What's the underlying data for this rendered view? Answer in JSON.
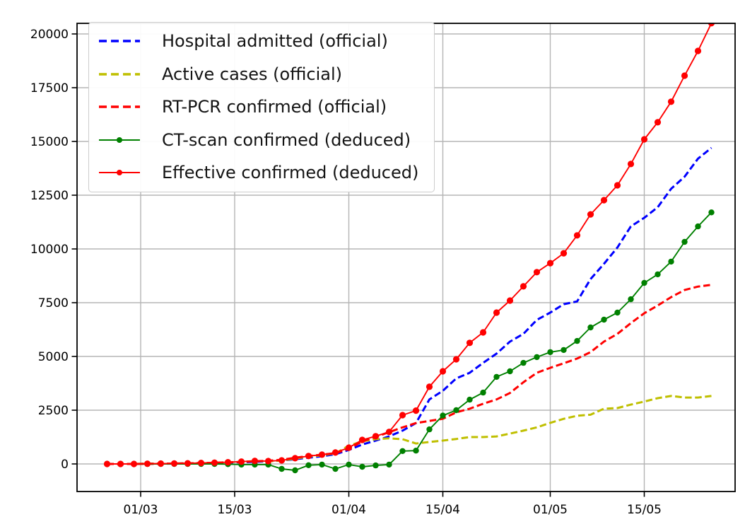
{
  "chart_data": {
    "type": "line",
    "title": "",
    "xlabel": "",
    "ylabel": "",
    "grid": true,
    "legend_position": "upper-left",
    "x_dates": [
      "25/02",
      "27/02",
      "29/02",
      "02/03",
      "04/03",
      "06/03",
      "08/03",
      "10/03",
      "12/03",
      "14/03",
      "16/03",
      "18/03",
      "20/03",
      "22/03",
      "24/03",
      "26/03",
      "28/03",
      "30/03",
      "01/04",
      "03/04",
      "05/04",
      "07/04",
      "09/04",
      "11/04",
      "13/04",
      "15/04",
      "17/04",
      "19/04",
      "21/04",
      "23/04",
      "25/04",
      "27/04",
      "29/04",
      "01/05",
      "03/05",
      "05/05",
      "07/05",
      "09/05",
      "11/05",
      "13/05",
      "15/05",
      "17/05",
      "19/05",
      "21/05",
      "23/05",
      "25/05"
    ],
    "x_day_offsets": [
      -5,
      -3,
      -1,
      1,
      3,
      5,
      7,
      9,
      11,
      13,
      15,
      17,
      19,
      21,
      23,
      25,
      27,
      29,
      31,
      33,
      35,
      37,
      39,
      41,
      43,
      45,
      47,
      49,
      51,
      53,
      55,
      57,
      59,
      61,
      63,
      65,
      67,
      69,
      71,
      73,
      75,
      77,
      79,
      81,
      83,
      85
    ],
    "x_ticks": [
      {
        "label": "01/03",
        "day": 0
      },
      {
        "label": "15/03",
        "day": 14
      },
      {
        "label": "01/04",
        "day": 31
      },
      {
        "label": "15/04",
        "day": 45
      },
      {
        "label": "01/05",
        "day": 61
      },
      {
        "label": "15/05",
        "day": 75
      }
    ],
    "y_ticks": [
      0,
      2500,
      5000,
      7500,
      10000,
      12500,
      15000,
      17500,
      20000
    ],
    "ylim": [
      -1283,
      20490
    ],
    "xlim_days": [
      -9.5,
      88.5
    ],
    "grid_color": "#b5b5b5",
    "series": [
      {
        "name": "Hospital admitted (official)",
        "color": "#0000ff",
        "style": "dashed",
        "marker": false,
        "values": [
          0,
          0,
          0,
          5,
          10,
          15,
          25,
          35,
          50,
          65,
          80,
          100,
          120,
          160,
          220,
          290,
          360,
          450,
          650,
          900,
          1085,
          1280,
          1550,
          1900,
          3000,
          3400,
          3980,
          4240,
          4700,
          5130,
          5690,
          6050,
          6700,
          7040,
          7430,
          7560,
          8600,
          9310,
          10070,
          11050,
          11450,
          11940,
          12800,
          13360,
          14200,
          14700
        ]
      },
      {
        "name": "Active cases (official)",
        "color": "#bfbf00",
        "style": "dashed",
        "marker": false,
        "values": [
          0,
          0,
          0,
          10,
          12,
          18,
          28,
          40,
          55,
          75,
          100,
          130,
          125,
          155,
          250,
          340,
          400,
          490,
          850,
          1050,
          1150,
          1190,
          1150,
          950,
          1020,
          1085,
          1160,
          1250,
          1250,
          1280,
          1410,
          1550,
          1700,
          1910,
          2100,
          2240,
          2290,
          2570,
          2600,
          2760,
          2900,
          3060,
          3160,
          3090,
          3090,
          3160
        ]
      },
      {
        "name": "RT-PCR confirmed (official)",
        "color": "#ff0000",
        "style": "dashed",
        "marker": false,
        "values": [
          0,
          0,
          0,
          8,
          12,
          18,
          28,
          40,
          55,
          75,
          95,
          125,
          150,
          190,
          290,
          365,
          430,
          500,
          700,
          1050,
          1250,
          1480,
          1700,
          1900,
          2000,
          2100,
          2400,
          2570,
          2800,
          3000,
          3300,
          3800,
          4240,
          4470,
          4680,
          4900,
          5200,
          5690,
          6050,
          6550,
          7010,
          7370,
          7760,
          8090,
          8250,
          8330
        ]
      },
      {
        "name": "CT-scan confirmed (deduced)",
        "color": "#008000",
        "style": "solid",
        "marker": true,
        "values": [
          0,
          0,
          0,
          0,
          0,
          0,
          0,
          0,
          0,
          -10,
          -30,
          -30,
          -30,
          -230,
          -295,
          -60,
          -30,
          -230,
          -30,
          -130,
          -70,
          -30,
          600,
          620,
          1610,
          2250,
          2500,
          2990,
          3320,
          4050,
          4310,
          4700,
          4970,
          5200,
          5300,
          5720,
          6350,
          6710,
          7040,
          7660,
          8420,
          8820,
          9410,
          10330,
          11050,
          11700
        ]
      },
      {
        "name": "Effective confirmed (deduced)",
        "color": "#ff0000",
        "style": "solid",
        "marker": true,
        "values": [
          0,
          0,
          0,
          10,
          15,
          20,
          30,
          45,
          60,
          80,
          110,
          140,
          130,
          165,
          265,
          370,
          430,
          530,
          755,
          1120,
          1290,
          1490,
          2270,
          2480,
          3590,
          4310,
          4870,
          5630,
          6120,
          7040,
          7600,
          8260,
          8920,
          9340,
          9800,
          10630,
          11610,
          12270,
          12960,
          13950,
          15100,
          15890,
          16850,
          18060,
          19210,
          20500
        ]
      }
    ]
  }
}
